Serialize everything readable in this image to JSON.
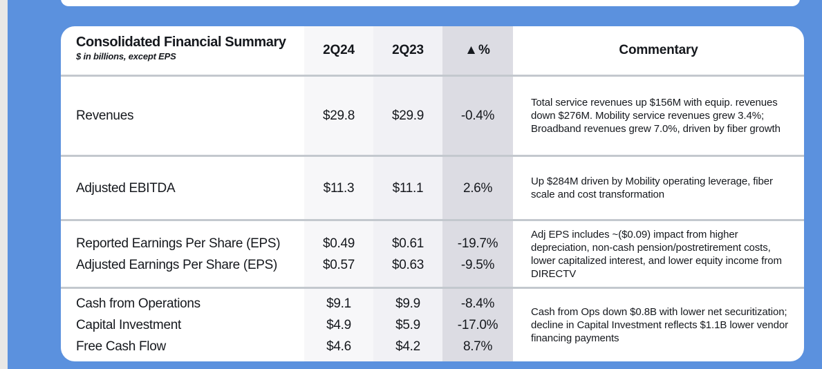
{
  "colors": {
    "background_blue": "#5b91de",
    "left_strip_gray": "#e9e8e6",
    "card_white": "#ffffff",
    "col_2q24_bg": "#f7f7f9",
    "col_2q23_bg": "#f1f1f5",
    "col_delta_bg": "#dcdce3",
    "divider_gray": "#c3c8ce",
    "text_dark": "#15181d"
  },
  "table": {
    "title": "Consolidated Financial Summary",
    "subtitle": "$ in billions, except EPS",
    "columns": [
      "2Q24",
      "2Q23",
      "▲%",
      "Commentary"
    ],
    "rows": [
      {
        "lines": [
          {
            "label": "Revenues",
            "q2_2024": "$29.8",
            "q2_2023": "$29.9",
            "change_pct": "-0.4%"
          }
        ],
        "commentary": "Total service revenues up $156M with equip. revenues down $276M. Mobility service revenues grew 3.4%; Broadband revenues grew 7.0%, driven by fiber growth"
      },
      {
        "lines": [
          {
            "label": "Adjusted EBITDA",
            "q2_2024": "$11.3",
            "q2_2023": "$11.1",
            "change_pct": "2.6%"
          }
        ],
        "commentary": "Up $284M driven by Mobility operating leverage, fiber scale and cost transformation"
      },
      {
        "lines": [
          {
            "label": "Reported Earnings Per Share (EPS)",
            "q2_2024": "$0.49",
            "q2_2023": "$0.61",
            "change_pct": "-19.7%"
          },
          {
            "label": "Adjusted Earnings Per Share (EPS)",
            "q2_2024": "$0.57",
            "q2_2023": "$0.63",
            "change_pct": "-9.5%"
          }
        ],
        "commentary": "Adj EPS includes ~($0.09) impact from higher depreciation, non-cash pension/postretirement costs, lower capitalized interest, and lower equity income from DIRECTV"
      },
      {
        "lines": [
          {
            "label": "Cash from Operations",
            "q2_2024": "$9.1",
            "q2_2023": "$9.9",
            "change_pct": "-8.4%"
          },
          {
            "label": "Capital Investment",
            "q2_2024": "$4.9",
            "q2_2023": "$5.9",
            "change_pct": "-17.0%"
          },
          {
            "label": "Free Cash Flow",
            "q2_2024": "$4.6",
            "q2_2023": "$4.2",
            "change_pct": "8.7%"
          }
        ],
        "commentary": "Cash from Ops down $0.8B with lower net securitization; decline in Capital Investment reflects $1.1B lower vendor financing payments"
      }
    ]
  }
}
